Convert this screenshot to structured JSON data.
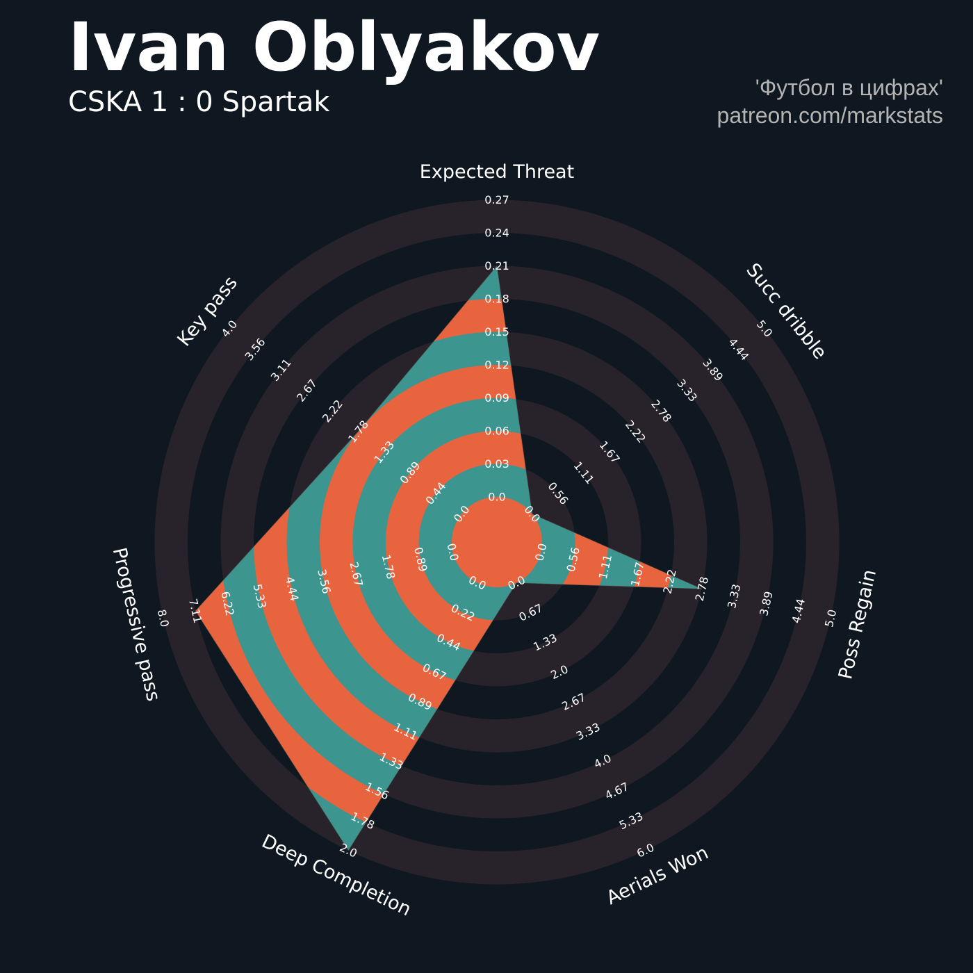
{
  "header": {
    "title": "Ivan Oblyakov",
    "subtitle": "CSKA 1 : 0 Spartak",
    "credit_line1": "'Футбол в цифрах'",
    "credit_line2": "patreon.com/markstats"
  },
  "colors": {
    "background": "#0f1820",
    "ring_dark": "#28232a",
    "fill_a": "#e8643f",
    "fill_b": "#3d958f",
    "text": "#ffffff",
    "credit": "#b4b4b4"
  },
  "chart_data": {
    "type": "radar",
    "title": "Ivan Oblyakov",
    "subtitle": "CSKA 1 : 0 Spartak",
    "grid": true,
    "legend": "none",
    "rings": 9,
    "axes": [
      {
        "name": "Expected Threat",
        "min": 0,
        "max": 0.27,
        "ticks": [
          "0.0",
          "0.03",
          "0.06",
          "0.09",
          "0.12",
          "0.15",
          "0.18",
          "0.21",
          "0.24",
          "0.27"
        ]
      },
      {
        "name": "Succ dribble",
        "min": 0,
        "max": 5.0,
        "ticks": [
          "0.0",
          "0.56",
          "1.11",
          "1.67",
          "2.22",
          "2.78",
          "3.33",
          "3.89",
          "4.44",
          "5.0"
        ]
      },
      {
        "name": "Poss Regain",
        "min": 0,
        "max": 5.0,
        "ticks": [
          "0.0",
          "0.56",
          "1.11",
          "1.67",
          "2.22",
          "2.78",
          "3.33",
          "3.89",
          "4.44",
          "5.0"
        ]
      },
      {
        "name": "Aerials Won",
        "min": 0,
        "max": 6.0,
        "ticks": [
          "0.0",
          "0.67",
          "1.33",
          "2.0",
          "2.67",
          "3.33",
          "4.0",
          "4.67",
          "5.33",
          "6.0"
        ]
      },
      {
        "name": "Deep Completion",
        "min": 0,
        "max": 2.0,
        "ticks": [
          "0.0",
          "0.22",
          "0.44",
          "0.67",
          "0.89",
          "1.11",
          "1.33",
          "1.56",
          "1.78",
          "2.0"
        ]
      },
      {
        "name": "Progressive pass",
        "min": 0,
        "max": 8.0,
        "ticks": [
          "0.0",
          "0.89",
          "1.78",
          "2.67",
          "3.56",
          "4.44",
          "5.33",
          "6.22",
          "7.11",
          "8.0"
        ]
      },
      {
        "name": "Key pass",
        "min": 0,
        "max": 4.0,
        "ticks": [
          "0.0",
          "0.44",
          "0.89",
          "1.33",
          "1.78",
          "2.22",
          "2.67",
          "3.11",
          "3.56",
          "4.0"
        ]
      }
    ],
    "series": [
      {
        "values": [
          0.21,
          0.0,
          2.78,
          0.0,
          2.0,
          7.11,
          1.78
        ]
      }
    ]
  }
}
